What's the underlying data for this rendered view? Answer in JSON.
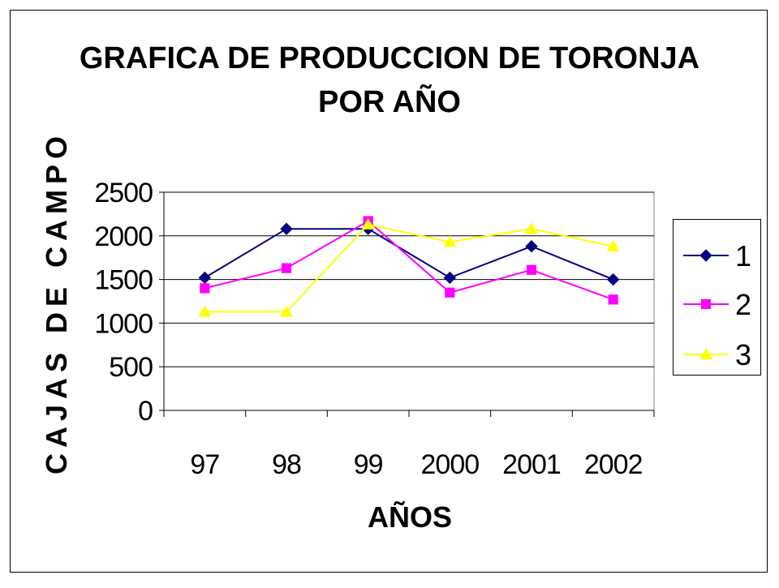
{
  "chart_data": {
    "type": "line",
    "title": "GRAFICA DE PRODUCCION DE TORONJA POR AÑO",
    "title_lines": [
      "GRAFICA DE PRODUCCION DE TORONJA",
      "POR AÑO"
    ],
    "xlabel": "AÑOS",
    "ylabel": "CAJAS DE CAMPO",
    "categories": [
      "97",
      "98",
      "99",
      "2000",
      "2001",
      "2002"
    ],
    "yticks": [
      "0",
      "500",
      "1000",
      "1500",
      "2000",
      "2500"
    ],
    "ylim": [
      0,
      2500
    ],
    "grid": true,
    "legend": "right",
    "series": [
      {
        "name": "1",
        "color": "#000080",
        "marker": "diamond",
        "values": [
          1520,
          2080,
          2080,
          1520,
          1880,
          1500
        ]
      },
      {
        "name": "2",
        "color": "#ff00ff",
        "marker": "square",
        "values": [
          1400,
          1630,
          2170,
          1350,
          1610,
          1270
        ]
      },
      {
        "name": "3",
        "color": "#ffff00",
        "marker": "triangle",
        "values": [
          1130,
          1130,
          2130,
          1930,
          2080,
          1880
        ]
      }
    ]
  }
}
